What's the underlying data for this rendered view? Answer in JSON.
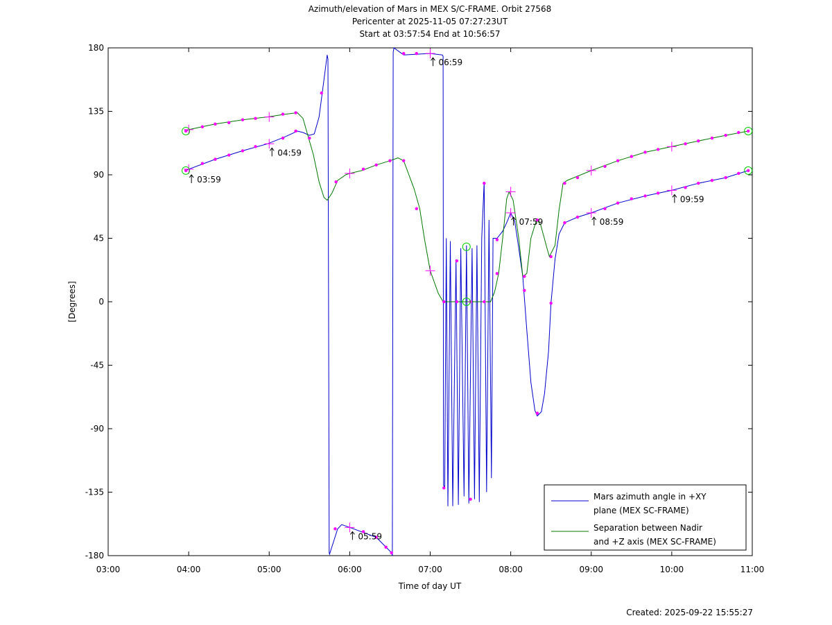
{
  "title_lines": [
    "Azimuth/elevation of Mars in MEX S/C-FRAME.  Orbit 27568",
    "Pericenter at 2025-11-05 07:27:23UT",
    "Start at 03:57:54 End at 10:56:57"
  ],
  "created": "Created: 2025-09-22 15:55:27",
  "colors": {
    "azimuth": "#0000cc",
    "separation": "#007700",
    "marker": "#ff00ff",
    "circle": "#00cc00"
  },
  "chart_data": {
    "type": "line",
    "xlabel": "Time of day UT",
    "ylabel": "[Degrees]",
    "xlim": [
      3.0,
      11.0
    ],
    "ylim": [
      -180,
      180
    ],
    "x_ticks": [
      3,
      4,
      5,
      6,
      7,
      8,
      9,
      10,
      11
    ],
    "x_tick_labels": [
      "03:00",
      "04:00",
      "05:00",
      "06:00",
      "07:00",
      "08:00",
      "09:00",
      "10:00",
      "11:00"
    ],
    "y_ticks": [
      180,
      135,
      90,
      45,
      0,
      -45,
      -90,
      -135,
      -180
    ],
    "y_tick_labels": [
      "180",
      "135",
      "90",
      "45",
      "0",
      "-45",
      "-90",
      "-135",
      "-180"
    ],
    "legend_position": "bottom-right",
    "series": [
      {
        "key": "azimuth",
        "name": "Mars azimuth angle in +XY plane (MEX SC-FRAME)",
        "legend_lines": [
          "Mars azimuth angle in +XY",
          "plane (MEX SC-FRAME)"
        ],
        "points": [
          [
            3.965,
            93
          ],
          [
            4.0,
            94
          ],
          [
            4.33,
            101
          ],
          [
            4.67,
            107
          ],
          [
            4.98,
            112
          ],
          [
            5.2,
            117
          ],
          [
            5.35,
            121
          ],
          [
            5.42,
            120
          ],
          [
            5.5,
            118
          ],
          [
            5.56,
            119
          ],
          [
            5.62,
            131
          ],
          [
            5.67,
            153
          ],
          [
            5.72,
            175
          ],
          [
            5.73,
            172
          ],
          [
            5.745,
            -178
          ],
          [
            5.75,
            -179
          ],
          [
            5.85,
            -161
          ],
          [
            5.9,
            -158
          ],
          [
            6.0,
            -160
          ],
          [
            6.33,
            -167
          ],
          [
            6.52,
            -178
          ],
          [
            6.53,
            -180
          ],
          [
            6.54,
            177
          ],
          [
            6.55,
            180
          ],
          [
            6.67,
            175
          ],
          [
            6.83,
            175.5
          ],
          [
            7.0,
            176
          ],
          [
            7.15,
            175
          ],
          [
            7.16,
            174
          ],
          [
            7.165,
            -130
          ],
          [
            7.18,
            -132
          ],
          [
            7.2,
            45
          ],
          [
            7.22,
            -145
          ],
          [
            7.25,
            43
          ],
          [
            7.28,
            -145
          ],
          [
            7.32,
            30
          ],
          [
            7.35,
            -144
          ],
          [
            7.38,
            38
          ],
          [
            7.42,
            -138
          ],
          [
            7.45,
            40
          ],
          [
            7.48,
            -143
          ],
          [
            7.52,
            38
          ],
          [
            7.55,
            -140
          ],
          [
            7.58,
            40
          ],
          [
            7.61,
            -142
          ],
          [
            7.64,
            45
          ],
          [
            7.67,
            85
          ],
          [
            7.7,
            -135
          ],
          [
            7.73,
            58
          ],
          [
            7.76,
            -125
          ],
          [
            7.78,
            45
          ],
          [
            7.83,
            45
          ],
          [
            7.9,
            50
          ],
          [
            7.95,
            56
          ],
          [
            8.0,
            63
          ],
          [
            8.05,
            57
          ],
          [
            8.1,
            38
          ],
          [
            8.15,
            18
          ],
          [
            8.2,
            -20
          ],
          [
            8.25,
            -57
          ],
          [
            8.3,
            -77
          ],
          [
            8.33,
            -81
          ],
          [
            8.38,
            -78
          ],
          [
            8.42,
            -65
          ],
          [
            8.47,
            -35
          ],
          [
            8.5,
            -1
          ],
          [
            8.55,
            30
          ],
          [
            8.6,
            48
          ],
          [
            8.67,
            56
          ],
          [
            8.83,
            60
          ],
          [
            9.0,
            63
          ],
          [
            9.33,
            70
          ],
          [
            9.67,
            75
          ],
          [
            10.0,
            79
          ],
          [
            10.33,
            84
          ],
          [
            10.67,
            88
          ],
          [
            10.95,
            93
          ]
        ]
      },
      {
        "key": "separation",
        "name": "Separation between Nadir and +Z axis (MEX SC-FRAME)",
        "legend_lines": [
          "Separation between Nadir",
          "and +Z axis (MEX SC-FRAME)"
        ],
        "points": [
          [
            3.965,
            121
          ],
          [
            4.0,
            122
          ],
          [
            4.33,
            126
          ],
          [
            4.67,
            129
          ],
          [
            4.98,
            131
          ],
          [
            5.2,
            133
          ],
          [
            5.35,
            134
          ],
          [
            5.42,
            130
          ],
          [
            5.48,
            118
          ],
          [
            5.55,
            104
          ],
          [
            5.62,
            85
          ],
          [
            5.68,
            74
          ],
          [
            5.72,
            72
          ],
          [
            5.78,
            77
          ],
          [
            5.85,
            86
          ],
          [
            5.95,
            90
          ],
          [
            6.0,
            91
          ],
          [
            6.15,
            93
          ],
          [
            6.33,
            97
          ],
          [
            6.5,
            100
          ],
          [
            6.6,
            102
          ],
          [
            6.67,
            100
          ],
          [
            6.8,
            80
          ],
          [
            6.87,
            66
          ],
          [
            6.93,
            44
          ],
          [
            7.0,
            22
          ],
          [
            7.1,
            6
          ],
          [
            7.16,
            0
          ],
          [
            7.3,
            0
          ],
          [
            7.47,
            0
          ],
          [
            7.6,
            0
          ],
          [
            7.75,
            0
          ],
          [
            7.8,
            7
          ],
          [
            7.85,
            20
          ],
          [
            7.9,
            45
          ],
          [
            7.95,
            73
          ],
          [
            7.98,
            78
          ],
          [
            8.03,
            72
          ],
          [
            8.1,
            45
          ],
          [
            8.15,
            18
          ],
          [
            8.2,
            20
          ],
          [
            8.25,
            45
          ],
          [
            8.32,
            58
          ],
          [
            8.37,
            55
          ],
          [
            8.45,
            38
          ],
          [
            8.48,
            32
          ],
          [
            8.55,
            40
          ],
          [
            8.6,
            65
          ],
          [
            8.65,
            84
          ],
          [
            8.7,
            86
          ],
          [
            9.0,
            93
          ],
          [
            9.33,
            100
          ],
          [
            9.67,
            106
          ],
          [
            10.0,
            110
          ],
          [
            10.33,
            114
          ],
          [
            10.67,
            118
          ],
          [
            10.95,
            121
          ]
        ]
      }
    ],
    "markers": {
      "azimuth": [
        [
          3.965,
          93
        ],
        [
          4.17,
          98
        ],
        [
          4.33,
          101
        ],
        [
          4.5,
          104
        ],
        [
          4.67,
          107
        ],
        [
          4.83,
          110
        ],
        [
          5.17,
          116
        ],
        [
          5.33,
          121
        ],
        [
          5.65,
          148
        ],
        [
          5.82,
          -161
        ],
        [
          6.17,
          -163
        ],
        [
          6.33,
          -167
        ],
        [
          6.45,
          -174
        ],
        [
          6.52,
          -178
        ],
        [
          6.67,
          176
        ],
        [
          6.83,
          176
        ],
        [
          7.17,
          -132
        ],
        [
          7.33,
          29
        ],
        [
          7.5,
          -140
        ],
        [
          7.67,
          84
        ],
        [
          7.83,
          44
        ],
        [
          8.17,
          8
        ],
        [
          8.33,
          -79
        ],
        [
          8.5,
          -1
        ],
        [
          8.67,
          56
        ],
        [
          8.83,
          60
        ],
        [
          9.17,
          66
        ],
        [
          9.33,
          70
        ],
        [
          9.5,
          73
        ],
        [
          9.67,
          75
        ],
        [
          9.83,
          77
        ],
        [
          10.17,
          81
        ],
        [
          10.33,
          84
        ],
        [
          10.5,
          86
        ],
        [
          10.67,
          88
        ],
        [
          10.83,
          91
        ],
        [
          10.95,
          93
        ]
      ],
      "separation": [
        [
          3.965,
          121
        ],
        [
          4.17,
          124
        ],
        [
          4.33,
          126
        ],
        [
          4.5,
          127
        ],
        [
          4.67,
          129
        ],
        [
          4.83,
          130
        ],
        [
          5.17,
          133
        ],
        [
          5.33,
          134
        ],
        [
          5.5,
          116
        ],
        [
          5.83,
          85
        ],
        [
          6.17,
          94
        ],
        [
          6.33,
          97
        ],
        [
          6.5,
          100
        ],
        [
          6.67,
          100
        ],
        [
          6.83,
          66
        ],
        [
          7.17,
          0
        ],
        [
          7.33,
          0
        ],
        [
          7.5,
          0
        ],
        [
          7.67,
          0
        ],
        [
          7.83,
          20
        ],
        [
          8.17,
          18
        ],
        [
          8.33,
          58
        ],
        [
          8.5,
          32
        ],
        [
          8.67,
          84
        ],
        [
          8.83,
          88
        ],
        [
          9.17,
          96
        ],
        [
          9.33,
          100
        ],
        [
          9.5,
          103
        ],
        [
          9.67,
          106
        ],
        [
          9.83,
          108
        ],
        [
          10.17,
          112
        ],
        [
          10.33,
          114
        ],
        [
          10.5,
          116
        ],
        [
          10.67,
          118
        ],
        [
          10.83,
          120
        ],
        [
          10.95,
          121
        ]
      ]
    },
    "crosses": [
      [
        4.0,
        94
      ],
      [
        5.0,
        112
      ],
      [
        6.0,
        -160
      ],
      [
        7.0,
        176
      ],
      [
        8.0,
        63
      ],
      [
        9.0,
        63
      ],
      [
        10.0,
        79
      ],
      [
        4.0,
        122
      ],
      [
        5.0,
        131
      ],
      [
        6.0,
        91
      ],
      [
        7.0,
        22
      ],
      [
        8.0,
        78
      ],
      [
        9.0,
        93
      ],
      [
        10.0,
        110
      ]
    ],
    "circles": [
      [
        3.965,
        93
      ],
      [
        3.965,
        121
      ],
      [
        10.95,
        93
      ],
      [
        10.95,
        121
      ],
      [
        7.45,
        39
      ],
      [
        7.45,
        0
      ]
    ],
    "time_labels": [
      {
        "x": 4.0,
        "y": 90,
        "text": "03:59"
      },
      {
        "x": 5.0,
        "y": 109,
        "text": "04:59"
      },
      {
        "x": 6.0,
        "y": -163,
        "text": "05:59"
      },
      {
        "x": 7.0,
        "y": 173,
        "text": "06:59"
      },
      {
        "x": 8.0,
        "y": 60,
        "text": "07:59"
      },
      {
        "x": 9.0,
        "y": 60,
        "text": "08:59"
      },
      {
        "x": 10.0,
        "y": 76,
        "text": "09:59"
      }
    ]
  }
}
